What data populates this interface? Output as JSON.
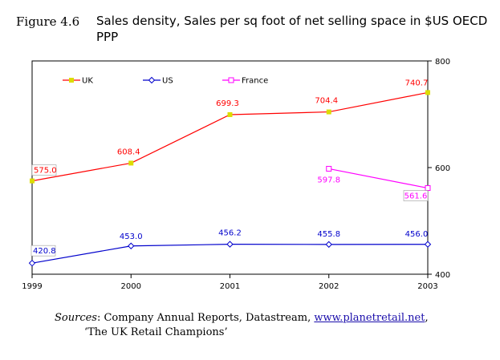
{
  "figure_label": "Figure 4.6",
  "title": "Sales density, Sales per sq foot of net selling space in $US OECD PPP",
  "chart_data": {
    "type": "line",
    "title": "Sales density, Sales per sq foot of net selling space in $US OECD PPP",
    "categories": [
      "1999",
      "2000",
      "2001",
      "2002",
      "2003"
    ],
    "xlabel": "",
    "ylabel": "",
    "ylim": [
      400,
      800
    ],
    "yticks": [
      "400",
      "600",
      "800"
    ],
    "y_axis_side": "right",
    "legend_position": "top-left",
    "series": [
      {
        "name": "UK",
        "color": "#ff0000",
        "marker": "square-filled",
        "marker_color": "#dcdc00",
        "values": [
          575.0,
          608.4,
          699.3,
          704.4,
          740.7
        ],
        "labels": [
          "575.0",
          "608.4",
          "699.3",
          "704.4",
          "740.7"
        ]
      },
      {
        "name": "US",
        "color": "#0000cc",
        "marker": "diamond-open",
        "values": [
          420.8,
          453.0,
          456.2,
          455.8,
          456.0
        ],
        "labels": [
          "420.8",
          "453.0",
          "456.2",
          "455.8",
          "456.0"
        ]
      },
      {
        "name": "France",
        "color": "#ff00ff",
        "marker": "square-open",
        "values": [
          null,
          null,
          null,
          597.8,
          561.6
        ],
        "labels": [
          null,
          null,
          null,
          "597.8",
          "561.6"
        ]
      }
    ]
  },
  "source": {
    "lead": "Sources",
    "text_before_link": ": Company Annual Reports, Datastream, ",
    "link": "www.planetretail.net",
    "text_after_link": ",",
    "line2": "‘The UK Retail Champions’"
  }
}
